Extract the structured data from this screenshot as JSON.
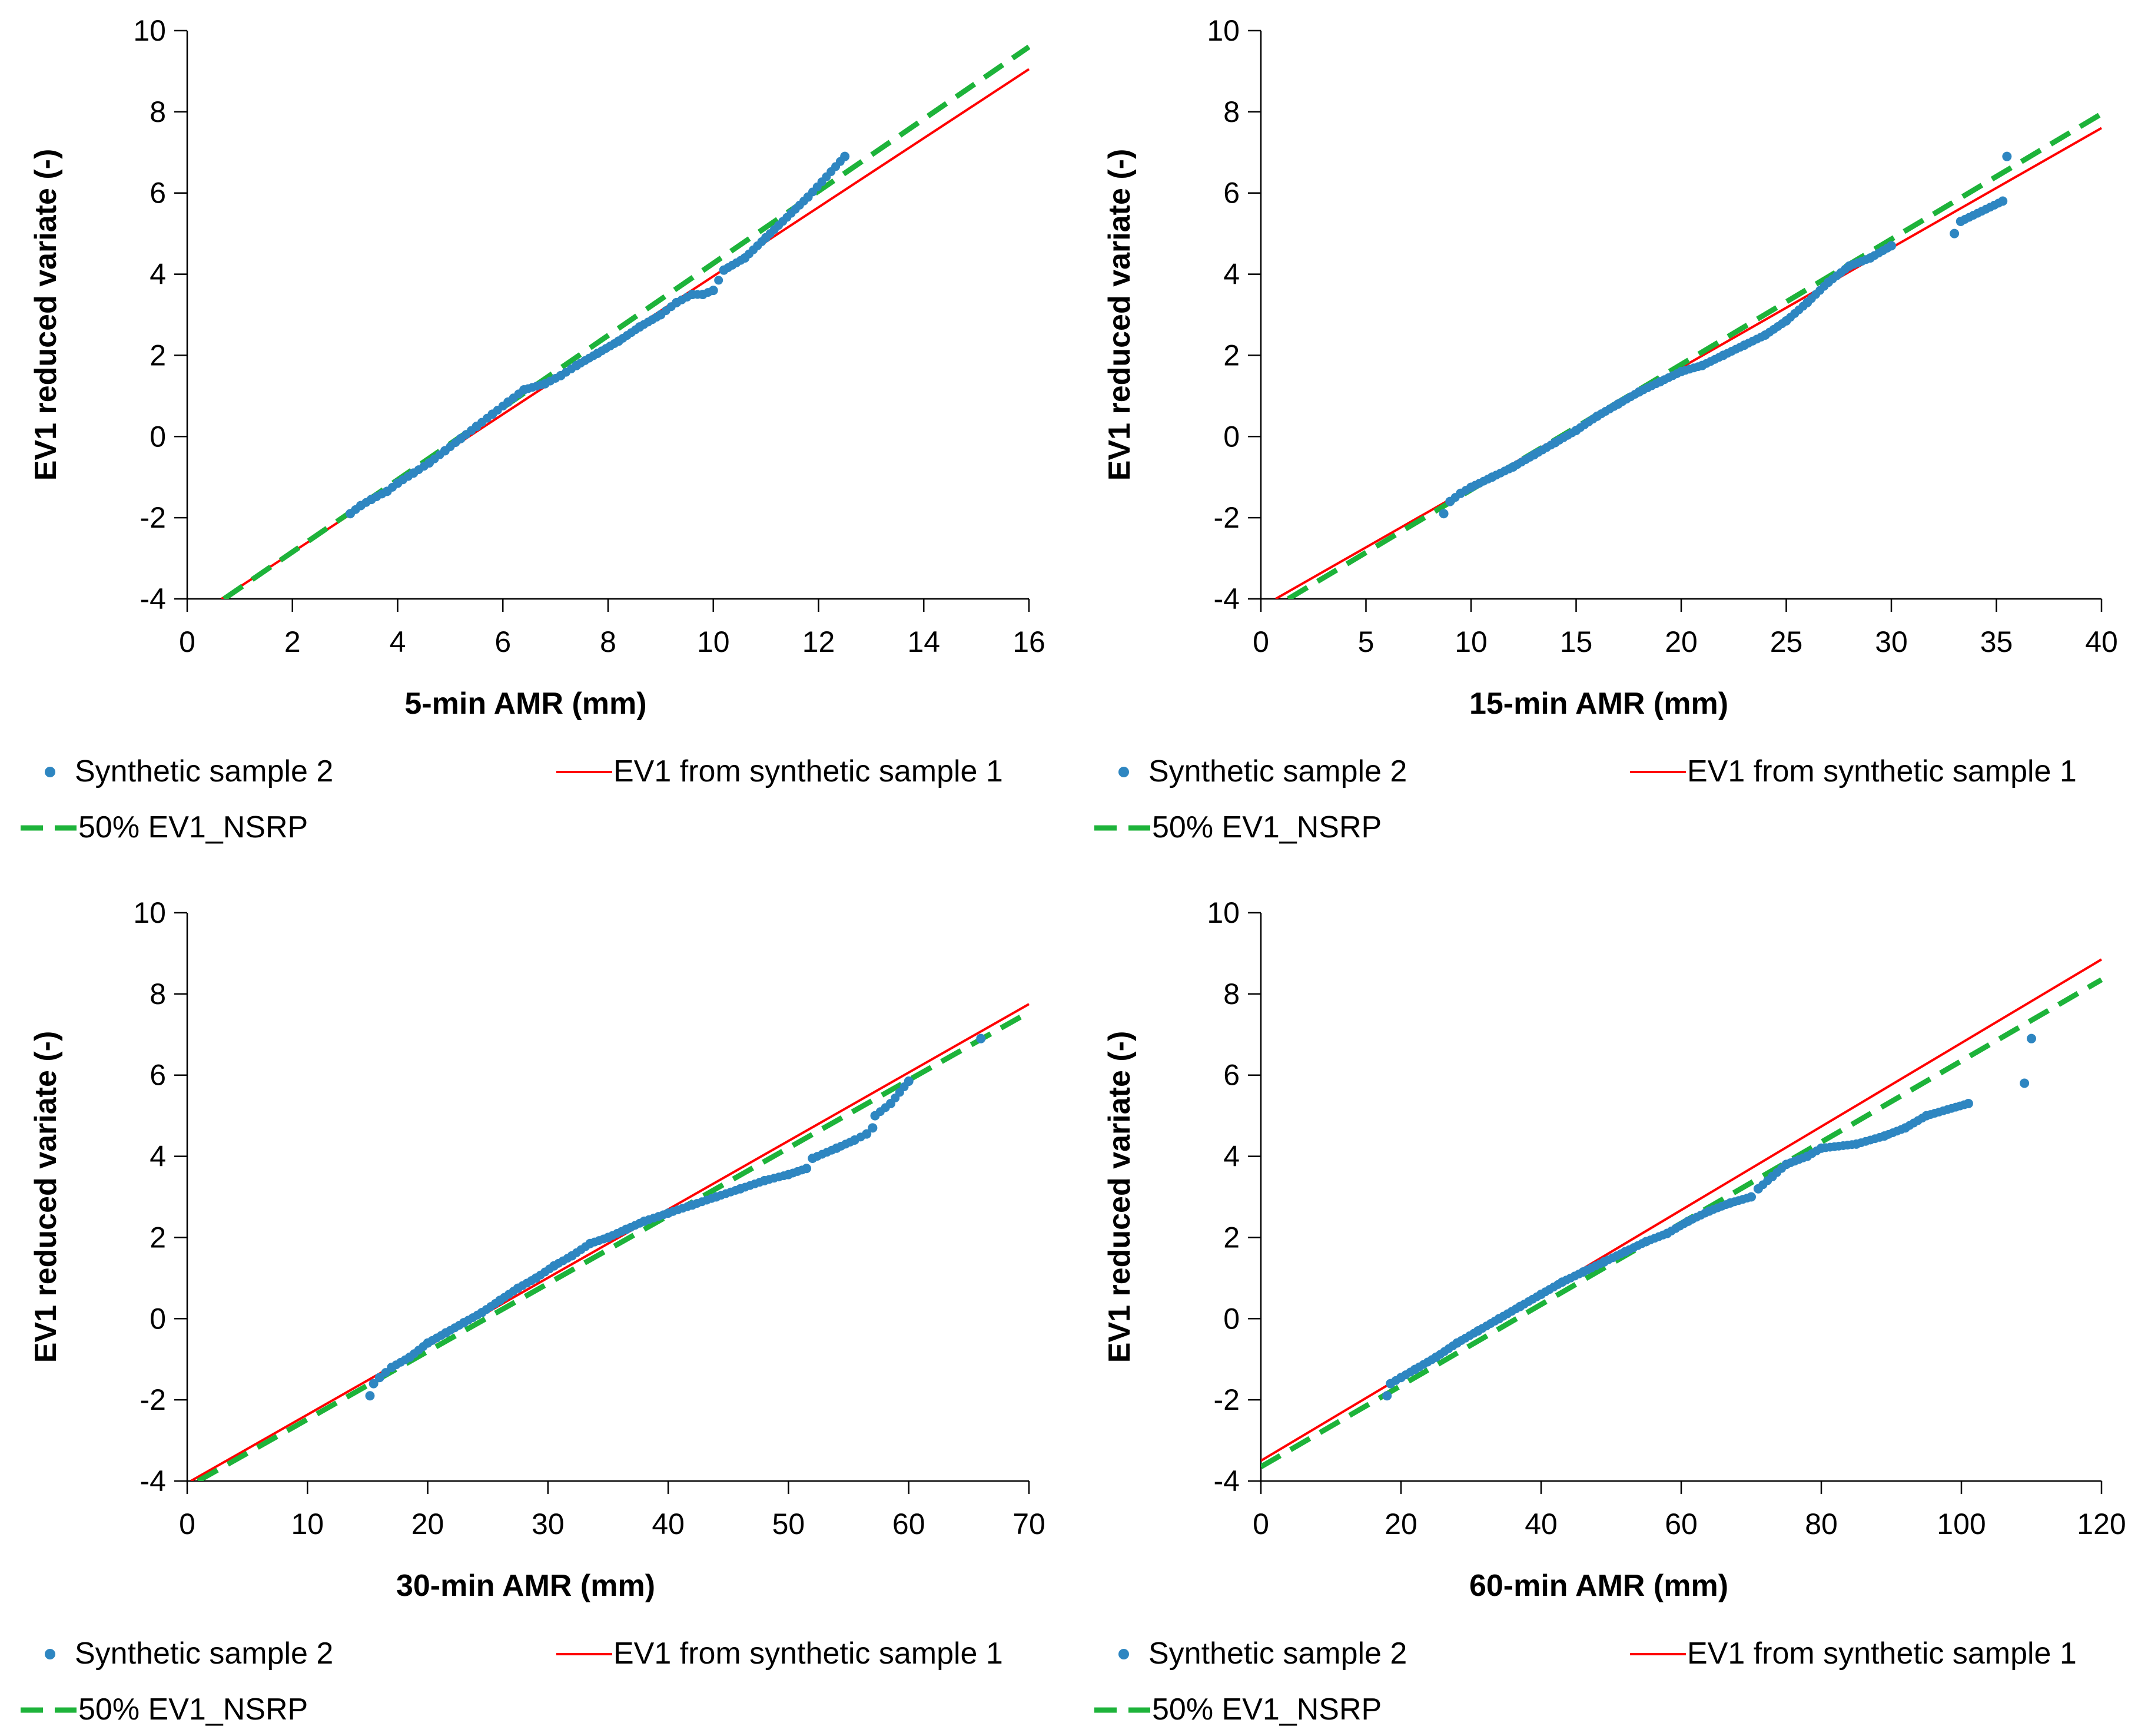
{
  "legend_labels": {
    "scatter": "Synthetic sample 2",
    "red": "EV1 from synthetic sample 1",
    "green": "50% EV1_NSRP"
  },
  "colors": {
    "scatter": "#2e86c1",
    "red": "#ff0000",
    "green": "#1db33a",
    "axis": "#000000"
  },
  "chart_data": [
    {
      "type": "scatter",
      "xlabel": "5-min AMR (mm)",
      "ylabel": "EV1 reduced variate (-)",
      "xlim": [
        0,
        16
      ],
      "ylim": [
        -4,
        10
      ],
      "xticks": [
        "0",
        "2",
        "4",
        "6",
        "8",
        "10",
        "12",
        "14",
        "16"
      ],
      "yticks": [
        "-4",
        "-2",
        "0",
        "2",
        "4",
        "6",
        "8",
        "10"
      ],
      "series": [
        {
          "name": "Synthetic sample 2",
          "kind": "points",
          "x": [
            3.1,
            3.3,
            3.5,
            3.8,
            4.0,
            4.3,
            4.6,
            4.9,
            5.2,
            5.5,
            5.8,
            6.1,
            6.4,
            6.8,
            7.1,
            7.4,
            7.8,
            8.2,
            8.6,
            9.0,
            9.3,
            9.6,
            9.8,
            10.0,
            10.2,
            10.6,
            11.0,
            11.8,
            12.5
          ],
          "y": [
            -1.9,
            -1.7,
            -1.55,
            -1.35,
            -1.15,
            -0.9,
            -0.65,
            -0.35,
            -0.05,
            0.25,
            0.55,
            0.85,
            1.15,
            1.3,
            1.5,
            1.75,
            2.05,
            2.35,
            2.7,
            3.0,
            3.3,
            3.5,
            3.5,
            3.6,
            4.1,
            4.4,
            4.9,
            5.9,
            6.9
          ]
        },
        {
          "name": "EV1 from synthetic sample 1",
          "kind": "line",
          "x": [
            0.65,
            16
          ],
          "y": [
            -4,
            9.05
          ]
        },
        {
          "name": "50% EV1_NSRP",
          "kind": "dashed",
          "x": [
            0.7,
            16
          ],
          "y": [
            -4,
            9.6
          ]
        }
      ]
    },
    {
      "type": "scatter",
      "xlabel": "15-min AMR (mm)",
      "ylabel": "EV1 reduced variate (-)",
      "xlim": [
        0,
        40
      ],
      "ylim": [
        -4,
        10
      ],
      "xticks": [
        "0",
        "5",
        "10",
        "15",
        "20",
        "25",
        "30",
        "35",
        "40"
      ],
      "yticks": [
        "-4",
        "-2",
        "0",
        "2",
        "4",
        "6",
        "8",
        "10"
      ],
      "series": [
        {
          "name": "Synthetic sample 2",
          "kind": "points",
          "x": [
            8.7,
            9.0,
            9.5,
            10.0,
            11.0,
            12.0,
            13.0,
            14.0,
            15.0,
            16.0,
            17.0,
            18.0,
            19.0,
            20.0,
            21.0,
            22.0,
            23.0,
            24.0,
            25.0,
            26.0,
            27.0,
            28.0,
            29.0,
            30.0,
            33.0,
            33.3,
            35.3,
            35.5
          ],
          "y": [
            -1.9,
            -1.6,
            -1.4,
            -1.25,
            -1.0,
            -0.75,
            -0.45,
            -0.15,
            0.15,
            0.5,
            0.8,
            1.1,
            1.35,
            1.6,
            1.75,
            2.0,
            2.25,
            2.5,
            2.85,
            3.3,
            3.8,
            4.2,
            4.4,
            4.7,
            5.0,
            5.3,
            5.8,
            6.9
          ]
        },
        {
          "name": "EV1 from synthetic sample 1",
          "kind": "line",
          "x": [
            0.7,
            40
          ],
          "y": [
            -4,
            7.6
          ]
        },
        {
          "name": "50% EV1_NSRP",
          "kind": "dashed",
          "x": [
            1.3,
            40
          ],
          "y": [
            -4,
            7.95
          ]
        }
      ]
    },
    {
      "type": "scatter",
      "xlabel": "30-min AMR (mm)",
      "ylabel": "EV1 reduced variate (-)",
      "xlim": [
        0,
        70
      ],
      "ylim": [
        -4,
        10
      ],
      "xticks": [
        "0",
        "10",
        "20",
        "30",
        "40",
        "50",
        "60",
        "70"
      ],
      "yticks": [
        "-4",
        "-2",
        "0",
        "2",
        "4",
        "6",
        "8",
        "10"
      ],
      "series": [
        {
          "name": "Synthetic sample 2",
          "kind": "points",
          "x": [
            15.2,
            15.5,
            16.0,
            17.0,
            18.5,
            20.0,
            21.5,
            23.0,
            24.5,
            26.0,
            27.5,
            29.0,
            30.5,
            32.0,
            33.5,
            35.0,
            36.5,
            38.0,
            40.0,
            42.0,
            44.0,
            46.0,
            48.0,
            50.0,
            51.5,
            52.0,
            54.0,
            55.5,
            56.5,
            57.0,
            57.2,
            58.5,
            60.0,
            66.0
          ],
          "y": [
            -1.9,
            -1.6,
            -1.45,
            -1.2,
            -0.95,
            -0.6,
            -0.35,
            -0.1,
            0.15,
            0.45,
            0.75,
            1.0,
            1.3,
            1.55,
            1.85,
            2.0,
            2.2,
            2.4,
            2.6,
            2.8,
            3.0,
            3.2,
            3.4,
            3.55,
            3.7,
            3.95,
            4.2,
            4.4,
            4.55,
            4.7,
            5.0,
            5.3,
            5.85,
            6.9
          ]
        },
        {
          "name": "EV1 from synthetic sample 1",
          "kind": "line",
          "x": [
            0.3,
            70
          ],
          "y": [
            -4,
            7.75
          ]
        },
        {
          "name": "50% EV1_NSRP",
          "kind": "dashed",
          "x": [
            0.9,
            70
          ],
          "y": [
            -4,
            7.55
          ]
        }
      ]
    },
    {
      "type": "scatter",
      "xlabel": "60-min AMR (mm)",
      "ylabel": "EV1 reduced variate (-)",
      "xlim": [
        0,
        120
      ],
      "ylim": [
        -4,
        10
      ],
      "xticks": [
        "0",
        "20",
        "40",
        "60",
        "80",
        "100",
        "120"
      ],
      "yticks": [
        "-4",
        "-2",
        "0",
        "2",
        "4",
        "6",
        "8",
        "10"
      ],
      "series": [
        {
          "name": "Synthetic sample 2",
          "kind": "points",
          "x": [
            18.0,
            18.5,
            20.0,
            22.0,
            25.0,
            28.0,
            31.0,
            34.0,
            37.0,
            40.0,
            43.0,
            46.0,
            49.0,
            52.0,
            55.0,
            58.0,
            61.0,
            64.0,
            67.0,
            70.0,
            71.0,
            73.0,
            75.0,
            78.0,
            80.0,
            85.0,
            89.0,
            92.0,
            95.0,
            101.0,
            109.0,
            110.0
          ],
          "y": [
            -1.9,
            -1.6,
            -1.45,
            -1.25,
            -0.95,
            -0.6,
            -0.3,
            0.0,
            0.3,
            0.6,
            0.9,
            1.15,
            1.4,
            1.65,
            1.9,
            2.1,
            2.4,
            2.65,
            2.85,
            3.0,
            3.2,
            3.5,
            3.8,
            4.0,
            4.2,
            4.3,
            4.5,
            4.7,
            5.0,
            5.3,
            5.8,
            6.9
          ]
        },
        {
          "name": "EV1 from synthetic sample 1",
          "kind": "line",
          "x": [
            0,
            120
          ],
          "y": [
            -3.5,
            8.85
          ]
        },
        {
          "name": "50% EV1_NSRP",
          "kind": "dashed",
          "x": [
            0,
            120
          ],
          "y": [
            -3.65,
            8.35
          ]
        }
      ]
    }
  ]
}
